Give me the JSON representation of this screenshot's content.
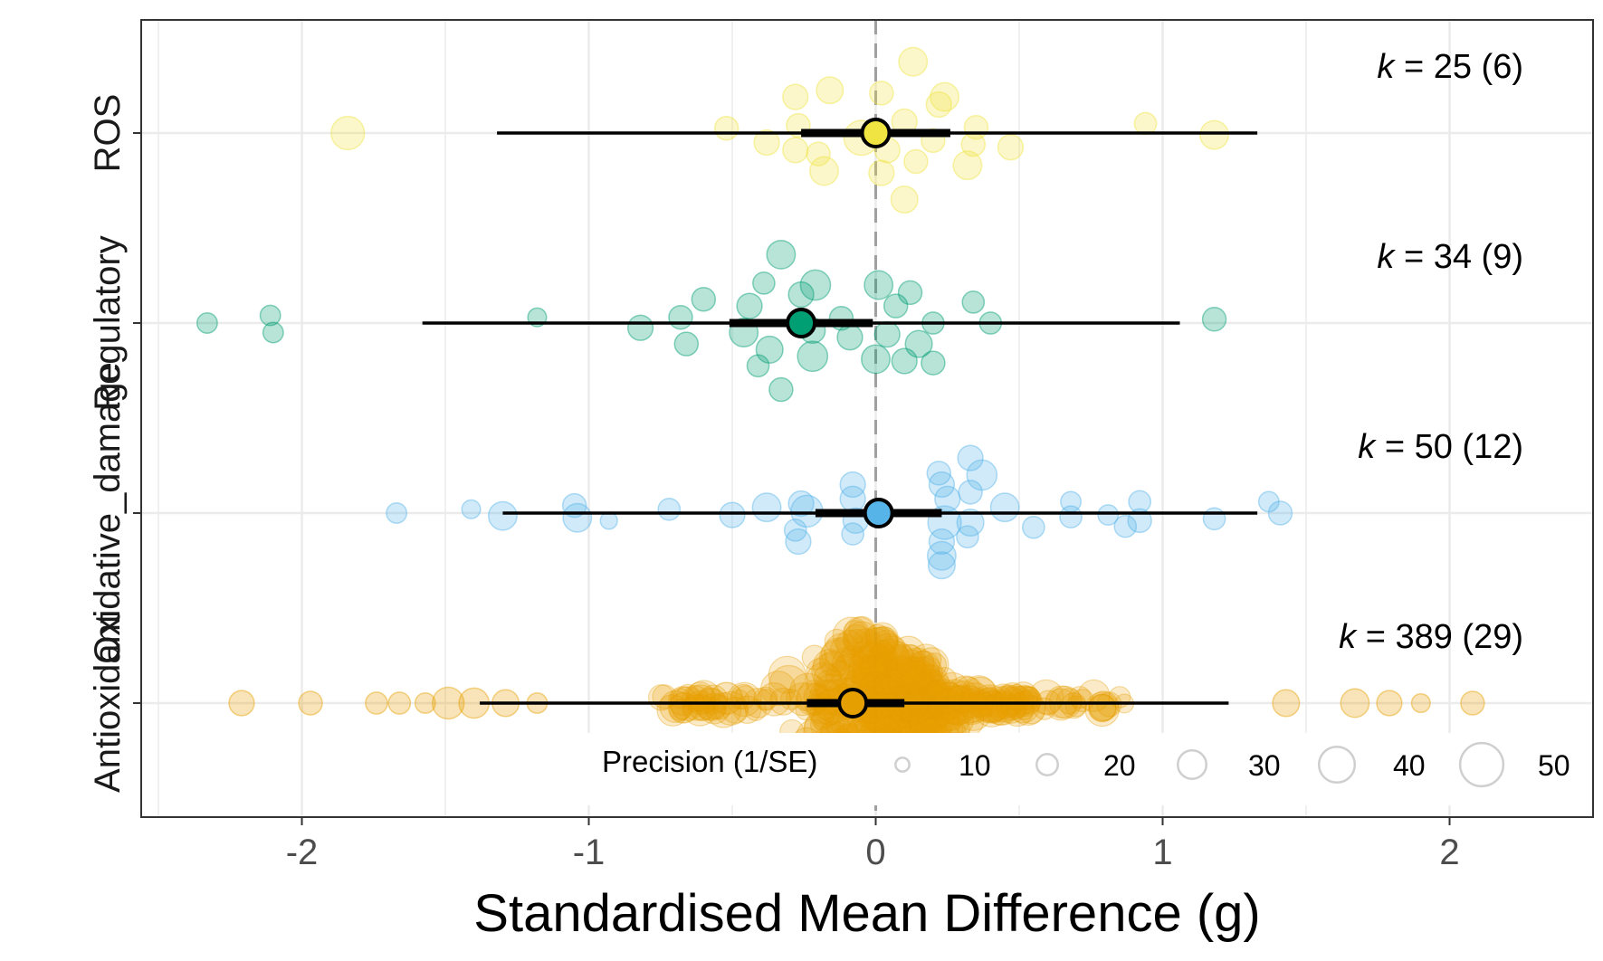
{
  "chart_data": {
    "type": "scatter",
    "subtype": "orchard plot",
    "xlabel": "Standardised Mean Difference (g)",
    "ylabel": "",
    "xlim": [
      -2.56,
      2.5
    ],
    "x_ticks": [
      -2,
      -1,
      0,
      1,
      2
    ],
    "x_tick_labels": [
      "-2",
      "-1",
      "0",
      "1",
      "2"
    ],
    "grid": true,
    "reference_line": 0,
    "categories": [
      "ROS",
      "Regulatory",
      "Oxidative_damage",
      "Antioxidant"
    ],
    "groups": [
      {
        "name": "ROS",
        "color": "#F0E442",
        "k_label": "k = 25 (6)",
        "k_prefix": "k",
        "k_rest": " = 25 (6)",
        "estimate": 0.0,
        "ci": [
          -0.26,
          0.26
        ],
        "pi": [
          -1.32,
          1.33
        ],
        "points": [
          {
            "x": -1.84,
            "j": 0.0,
            "p": 32
          },
          {
            "x": -0.52,
            "j": -0.05,
            "p": 20
          },
          {
            "x": -0.38,
            "j": 0.1,
            "p": 22
          },
          {
            "x": -0.27,
            "j": -0.08,
            "p": 20
          },
          {
            "x": -0.28,
            "j": 0.18,
            "p": 22
          },
          {
            "x": -0.18,
            "j": 0.4,
            "p": 26
          },
          {
            "x": -0.2,
            "j": 0.22,
            "p": 20
          },
          {
            "x": -0.16,
            "j": -0.45,
            "p": 24
          },
          {
            "x": -0.28,
            "j": -0.38,
            "p": 22
          },
          {
            "x": -0.05,
            "j": 0.05,
            "p": 34
          },
          {
            "x": 0.02,
            "j": 0.42,
            "p": 22
          },
          {
            "x": 0.04,
            "j": 0.18,
            "p": 22
          },
          {
            "x": 0.1,
            "j": 0.7,
            "p": 24
          },
          {
            "x": 0.14,
            "j": 0.3,
            "p": 20
          },
          {
            "x": 0.2,
            "j": 0.08,
            "p": 20
          },
          {
            "x": 0.22,
            "j": -0.3,
            "p": 22
          },
          {
            "x": 0.24,
            "j": -0.38,
            "p": 26
          },
          {
            "x": 0.1,
            "j": -0.12,
            "p": 22
          },
          {
            "x": 0.13,
            "j": -0.75,
            "p": 26
          },
          {
            "x": 0.02,
            "j": -0.42,
            "p": 20
          },
          {
            "x": 0.32,
            "j": 0.34,
            "p": 26
          },
          {
            "x": 0.34,
            "j": 0.12,
            "p": 20
          },
          {
            "x": 0.35,
            "j": -0.06,
            "p": 20
          },
          {
            "x": 0.47,
            "j": 0.15,
            "p": 22
          },
          {
            "x": 0.94,
            "j": -0.1,
            "p": 18
          },
          {
            "x": 1.18,
            "j": 0.02,
            "p": 26
          }
        ]
      },
      {
        "name": "Regulatory",
        "color": "#009E73",
        "k_label": "k = 34 (9)",
        "k_prefix": "k",
        "k_rest": " = 34 (9)",
        "estimate": -0.26,
        "ci": [
          -0.51,
          -0.01
        ],
        "pi": [
          -1.58,
          1.06
        ],
        "points": [
          {
            "x": -2.33,
            "j": 0.0,
            "p": 16
          },
          {
            "x": -2.1,
            "j": 0.1,
            "p": 16
          },
          {
            "x": -2.11,
            "j": -0.08,
            "p": 16
          },
          {
            "x": -1.18,
            "j": -0.06,
            "p": 14
          },
          {
            "x": -0.82,
            "j": 0.05,
            "p": 22
          },
          {
            "x": -0.66,
            "j": 0.22,
            "p": 20
          },
          {
            "x": -0.68,
            "j": -0.06,
            "p": 20
          },
          {
            "x": -0.6,
            "j": -0.25,
            "p": 20
          },
          {
            "x": -0.46,
            "j": 0.1,
            "p": 26
          },
          {
            "x": -0.44,
            "j": -0.18,
            "p": 22
          },
          {
            "x": -0.41,
            "j": 0.45,
            "p": 18
          },
          {
            "x": -0.37,
            "j": 0.28,
            "p": 24
          },
          {
            "x": -0.39,
            "j": -0.42,
            "p": 18
          },
          {
            "x": -0.33,
            "j": 0.7,
            "p": 20
          },
          {
            "x": -0.33,
            "j": -0.72,
            "p": 26
          },
          {
            "x": -0.22,
            "j": 0.35,
            "p": 28
          },
          {
            "x": -0.22,
            "j": 0.08,
            "p": 22
          },
          {
            "x": -0.26,
            "j": -0.3,
            "p": 22
          },
          {
            "x": -0.21,
            "j": -0.4,
            "p": 28
          },
          {
            "x": -0.12,
            "j": -0.05,
            "p": 20
          },
          {
            "x": -0.09,
            "j": 0.15,
            "p": 22
          },
          {
            "x": 0.0,
            "j": 0.38,
            "p": 26
          },
          {
            "x": 0.04,
            "j": 0.12,
            "p": 22
          },
          {
            "x": 0.01,
            "j": -0.4,
            "p": 26
          },
          {
            "x": 0.07,
            "j": -0.18,
            "p": 20
          },
          {
            "x": 0.1,
            "j": 0.4,
            "p": 22
          },
          {
            "x": 0.15,
            "j": 0.22,
            "p": 24
          },
          {
            "x": 0.12,
            "j": -0.32,
            "p": 20
          },
          {
            "x": 0.2,
            "j": 0.42,
            "p": 20
          },
          {
            "x": 0.2,
            "j": 0.0,
            "p": 18
          },
          {
            "x": 0.34,
            "j": -0.22,
            "p": 18
          },
          {
            "x": 0.4,
            "j": 0.0,
            "p": 18
          },
          {
            "x": 1.18,
            "j": -0.04,
            "p": 20
          }
        ]
      },
      {
        "name": "Oxidative_damage",
        "color": "#56B4E9",
        "k_label": "k = 50 (12)",
        "k_prefix": "k",
        "k_rest": " = 50 (12)",
        "estimate": 0.01,
        "ci": [
          -0.21,
          0.23
        ],
        "pi": [
          -1.3,
          1.33
        ],
        "points": [
          {
            "x": -1.67,
            "j": 0.0,
            "p": 16
          },
          {
            "x": -1.41,
            "j": -0.04,
            "p": 14
          },
          {
            "x": -1.3,
            "j": 0.03,
            "p": 26
          },
          {
            "x": -1.04,
            "j": 0.05,
            "p": 26
          },
          {
            "x": -1.05,
            "j": -0.08,
            "p": 20
          },
          {
            "x": -0.93,
            "j": 0.08,
            "p": 12
          },
          {
            "x": -0.72,
            "j": -0.04,
            "p": 18
          },
          {
            "x": -0.5,
            "j": 0.02,
            "p": 22
          },
          {
            "x": -0.38,
            "j": -0.06,
            "p": 26
          },
          {
            "x": -0.27,
            "j": 0.3,
            "p": 22
          },
          {
            "x": -0.28,
            "j": 0.18,
            "p": 18
          },
          {
            "x": -0.24,
            "j": -0.02,
            "p": 30
          },
          {
            "x": -0.26,
            "j": -0.1,
            "p": 22
          },
          {
            "x": -0.08,
            "j": 0.22,
            "p": 18
          },
          {
            "x": -0.07,
            "j": 0.08,
            "p": 22
          },
          {
            "x": -0.08,
            "j": -0.15,
            "p": 22
          },
          {
            "x": -0.08,
            "j": -0.3,
            "p": 22
          },
          {
            "x": 0.23,
            "j": 0.55,
            "p": 24
          },
          {
            "x": 0.23,
            "j": 0.45,
            "p": 26
          },
          {
            "x": 0.23,
            "j": 0.3,
            "p": 22
          },
          {
            "x": 0.24,
            "j": 0.1,
            "p": 32
          },
          {
            "x": 0.25,
            "j": -0.15,
            "p": 22
          },
          {
            "x": 0.23,
            "j": -0.3,
            "p": 22
          },
          {
            "x": 0.22,
            "j": -0.42,
            "p": 20
          },
          {
            "x": 0.32,
            "j": 0.25,
            "p": 18
          },
          {
            "x": 0.33,
            "j": 0.1,
            "p": 24
          },
          {
            "x": 0.33,
            "j": -0.22,
            "p": 20
          },
          {
            "x": 0.37,
            "j": -0.4,
            "p": 28
          },
          {
            "x": 0.33,
            "j": -0.58,
            "p": 22
          },
          {
            "x": 0.45,
            "j": -0.06,
            "p": 26
          },
          {
            "x": 0.55,
            "j": 0.15,
            "p": 18
          },
          {
            "x": 0.68,
            "j": 0.04,
            "p": 18
          },
          {
            "x": 0.68,
            "j": -0.12,
            "p": 16
          },
          {
            "x": 0.81,
            "j": 0.02,
            "p": 16
          },
          {
            "x": 0.87,
            "j": 0.14,
            "p": 18
          },
          {
            "x": 0.92,
            "j": 0.08,
            "p": 20
          },
          {
            "x": 0.92,
            "j": -0.12,
            "p": 18
          },
          {
            "x": 1.18,
            "j": 0.06,
            "p": 18
          },
          {
            "x": 1.37,
            "j": -0.12,
            "p": 16
          },
          {
            "x": 1.41,
            "j": 0.0,
            "p": 20
          }
        ]
      },
      {
        "name": "Antioxidant",
        "color": "#E69F00",
        "k_label": "k = 389 (29)",
        "k_prefix": "k",
        "k_rest": " = 389 (29)",
        "estimate": -0.08,
        "ci": [
          -0.24,
          0.1
        ],
        "pi": [
          -1.38,
          1.23
        ],
        "legend_title": "Precision (1/SE)",
        "legend_values": [
          10,
          20,
          30,
          40,
          50
        ],
        "points": [
          {
            "x": -2.21,
            "j": 0.0,
            "p": 22
          },
          {
            "x": -1.97,
            "j": 0.0,
            "p": 20
          },
          {
            "x": -1.74,
            "j": 0.0,
            "p": 18
          },
          {
            "x": -1.66,
            "j": 0.0,
            "p": 18
          },
          {
            "x": -1.57,
            "j": 0.0,
            "p": 16
          },
          {
            "x": -1.49,
            "j": 0.0,
            "p": 30
          },
          {
            "x": -1.4,
            "j": 0.0,
            "p": 28
          },
          {
            "x": -1.29,
            "j": 0.0,
            "p": 24
          },
          {
            "x": -1.18,
            "j": 0.0,
            "p": 16
          },
          {
            "x": -0.67,
            "j": 0.05,
            "p": 28
          },
          {
            "x": -0.52,
            "j": -0.05,
            "p": 30
          },
          {
            "x": 0.33,
            "j": 0.06,
            "p": 26
          },
          {
            "x": 0.53,
            "j": -0.03,
            "p": 24
          },
          {
            "x": 0.79,
            "j": 0.05,
            "p": 24
          },
          {
            "x": 1.43,
            "j": 0.0,
            "p": 24
          },
          {
            "x": 1.67,
            "j": 0.0,
            "p": 26
          },
          {
            "x": 1.79,
            "j": 0.0,
            "p": 22
          },
          {
            "x": 1.9,
            "j": 0.0,
            "p": 14
          },
          {
            "x": 2.08,
            "j": 0.0,
            "p": 20
          }
        ],
        "dense_points": true
      }
    ]
  }
}
